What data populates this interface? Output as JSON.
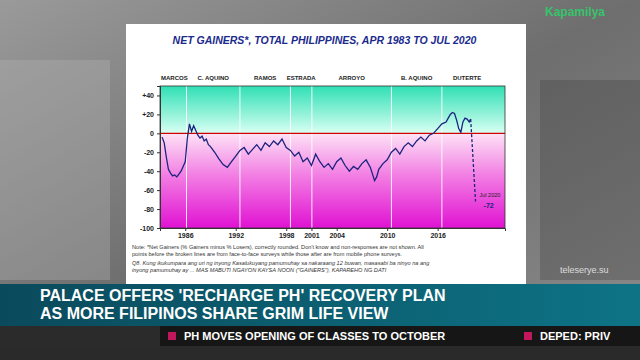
{
  "chart_data": {
    "type": "line",
    "title": "NET GAINERS*, TOTAL PHILIPPINES, APR 1983 TO JUL 2020",
    "x": [
      1983.25,
      1983.5,
      1983.75,
      1984,
      1984.25,
      1984.5,
      1984.75,
      1985,
      1985.25,
      1985.5,
      1985.75,
      1986,
      1986.25,
      1986.5,
      1986.75,
      1987,
      1987.25,
      1987.5,
      1987.75,
      1988,
      1988.25,
      1988.5,
      1988.75,
      1989,
      1989.5,
      1990,
      1990.5,
      1991,
      1991.5,
      1992,
      1992.5,
      1993,
      1993.5,
      1994,
      1994.5,
      1995,
      1995.5,
      1996,
      1996.5,
      1997,
      1997.5,
      1998,
      1998.5,
      1999,
      1999.5,
      2000,
      2000.5,
      2001,
      2001.5,
      2002,
      2002.5,
      2003,
      2003.5,
      2004,
      2004.5,
      2005,
      2005.5,
      2006,
      2006.5,
      2007,
      2007.5,
      2008,
      2008.5,
      2008.75,
      2009,
      2009.5,
      2010,
      2010.5,
      2011,
      2011.5,
      2012,
      2012.5,
      2013,
      2013.5,
      2014,
      2014.5,
      2015,
      2015.5,
      2016,
      2016.5,
      2017,
      2017.25,
      2017.5,
      2017.75,
      2018,
      2018.25,
      2018.5,
      2018.75,
      2019,
      2019.25,
      2019.5,
      2019.75,
      2019.92,
      2020.5
    ],
    "series": [
      {
        "color": "#1a237e",
        "line_style": "solid",
        "values": [
          -4,
          -10,
          -25,
          -38,
          -42,
          -45,
          -44,
          -46,
          -43,
          -40,
          -35,
          -30,
          -5,
          10,
          2,
          8,
          3,
          -2,
          -5,
          -3,
          -8,
          -6,
          -12,
          -14,
          -20,
          -27,
          -33,
          -36,
          -30,
          -24,
          -18,
          -15,
          -22,
          -17,
          -12,
          -18,
          -10,
          -14,
          -8,
          -12,
          -6,
          -15,
          -18,
          -24,
          -20,
          -30,
          -26,
          -34,
          -22,
          -30,
          -36,
          -32,
          -38,
          -30,
          -26,
          -34,
          -40,
          -35,
          -38,
          -32,
          -28,
          -36,
          -50,
          -46,
          -38,
          -32,
          -28,
          -20,
          -16,
          -22,
          -14,
          -10,
          -14,
          -8,
          -4,
          -8,
          -2,
          0,
          5,
          10,
          12,
          16,
          20,
          22,
          21,
          14,
          5,
          1,
          12,
          16,
          15,
          12,
          15,
          null
        ]
      },
      {
        "color": "#1a237e",
        "line_style": "dashed",
        "values": [
          null,
          null,
          null,
          null,
          null,
          null,
          null,
          null,
          null,
          null,
          null,
          null,
          null,
          null,
          null,
          null,
          null,
          null,
          null,
          null,
          null,
          null,
          null,
          null,
          null,
          null,
          null,
          null,
          null,
          null,
          null,
          null,
          null,
          null,
          null,
          null,
          null,
          null,
          null,
          null,
          null,
          null,
          null,
          null,
          null,
          null,
          null,
          null,
          null,
          null,
          null,
          null,
          null,
          null,
          null,
          null,
          null,
          null,
          null,
          null,
          null,
          null,
          null,
          null,
          null,
          null,
          null,
          null,
          null,
          null,
          null,
          null,
          null,
          null,
          null,
          null,
          null,
          null,
          null,
          null,
          null,
          null,
          null,
          null,
          null,
          null,
          null,
          null,
          null,
          null,
          null,
          null,
          15,
          -72
        ]
      }
    ],
    "xlim": [
      1983,
      2024
    ],
    "xticks": [
      1986,
      1992,
      1998,
      2001,
      2004,
      2010,
      2016
    ],
    "ylim": [
      -100,
      50
    ],
    "yticks": [
      {
        "value": 40,
        "label": "+40"
      },
      {
        "value": 20,
        "label": "+20"
      },
      0,
      -20,
      -40,
      -60,
      -80,
      -100
    ],
    "grid": false,
    "baseline": 0,
    "periods": [
      {
        "label": "MARCOS",
        "start": 1983.25,
        "end": 1986.15
      },
      {
        "label": "C. AQUINO",
        "start": 1986.15,
        "end": 1992.5
      },
      {
        "label": "RAMOS",
        "start": 1992.5,
        "end": 1998.5
      },
      {
        "label": "ESTRADA",
        "start": 1998.5,
        "end": 2001.05
      },
      {
        "label": "ARROYO",
        "start": 2001.05,
        "end": 2010.5
      },
      {
        "label": "B. AQUINO",
        "start": 2010.5,
        "end": 2016.5
      },
      {
        "label": "DUTERTE",
        "start": 2016.5,
        "end": 2022.5
      }
    ],
    "annotations": [
      {
        "label": "Jul 2020",
        "x": 2020.5,
        "value": -72
      }
    ],
    "notes": [
      "Note: *Net Gainers (% Gainers minus % Losers), correctly rounded. Don't know and non-responses are not shown. All",
      "points before the broken lines are from face-to-face surveys while those after are from mobile phone surveys.",
      "Q8. Kung ikukumpara ang uri ng inyong Kasalukuyang pamumuhay sa nakaraang 12 buwan, masasabi ba ninyo na ang",
      "inyong pamumuhay ay ... MAS MABUTI NGAYON KAYSA NOON (\"GAINERS\"), KAPAREHO NG DATI"
    ]
  },
  "broadcast": {
    "headline": [
      "PALACE OFFERS 'RECHARGE PH' RECOVERY PLAN",
      "AS MORE FILIPINOS SHARE GRIM LIFE VIEW"
    ],
    "ticker": "PH MOVES OPENING OF CLASSES TO OCTOBER",
    "ticker_next": "DEPED: PRIV",
    "logo": "Kapamilya",
    "watermark": "teleserye.su"
  }
}
